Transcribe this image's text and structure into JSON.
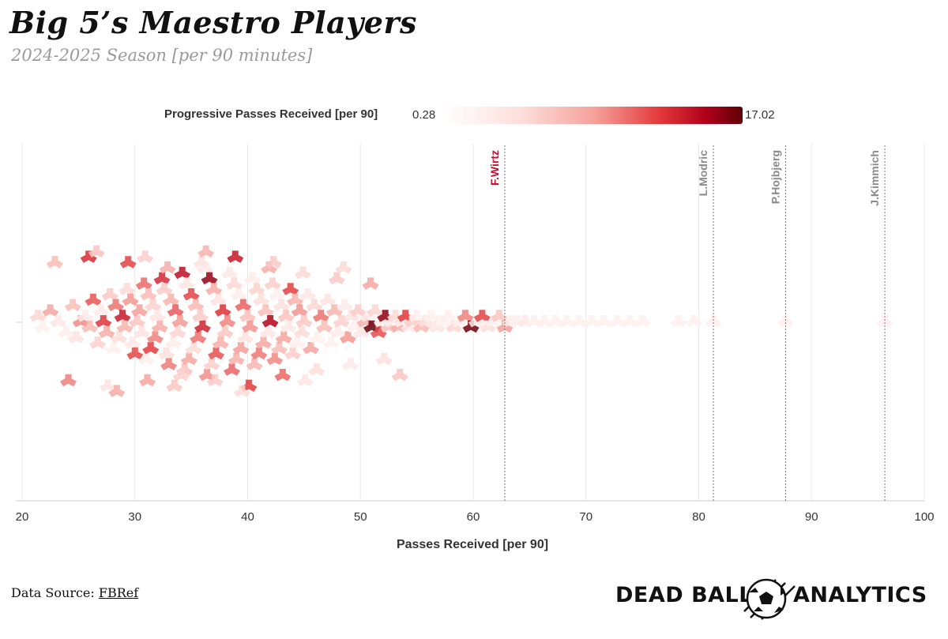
{
  "header": {
    "title": "Big 5’s Maestro Players",
    "subtitle": "2024-2025 Season [per 90 minutes]"
  },
  "legend": {
    "label": "Progressive Passes Received [per 90]",
    "min": "0.28",
    "max": "17.02",
    "colors": [
      "#ffffff",
      "#fde0dd",
      "#f6a39c",
      "#e33a3c",
      "#b0001a",
      "#5e0006"
    ]
  },
  "footer": {
    "source_label": "Data Source:",
    "source_link": "FBRef",
    "brand_left": "DEAD BALL",
    "brand_right": "ANALYTICS"
  },
  "chart_data": {
    "type": "beeswarm",
    "xlabel": "Passes Received [per 90]",
    "xlim": [
      20,
      100
    ],
    "xticks": [
      20,
      30,
      40,
      50,
      60,
      70,
      80,
      90,
      100
    ],
    "grid": true,
    "marker": "y-shape",
    "color_scale": {
      "min": 0.28,
      "max": 17.02
    },
    "highlighted": [
      {
        "name": "F.Wirtz",
        "x": 62.8,
        "color": "#c8102e"
      },
      {
        "name": "L.Modric",
        "x": 81.3,
        "color": "#8a8a8a"
      },
      {
        "name": "P.Hojbjerg",
        "x": 87.7,
        "color": "#8a8a8a"
      },
      {
        "name": "J.Kimmich",
        "x": 96.5,
        "color": "#8a8a8a"
      }
    ],
    "points": [
      [
        21.4,
        5.2
      ],
      [
        21.8,
        2.1
      ],
      [
        22.5,
        8.4
      ],
      [
        23.2,
        3.6
      ],
      [
        23.9,
        1.2
      ],
      [
        24.5,
        6.8
      ],
      [
        24.8,
        4.0
      ],
      [
        25.2,
        9.5
      ],
      [
        25.6,
        2.8
      ],
      [
        26.0,
        7.2
      ],
      [
        26.3,
        11.4
      ],
      [
        26.7,
        5.5
      ],
      [
        27.0,
        3.1
      ],
      [
        27.2,
        12.6
      ],
      [
        27.5,
        8.0
      ],
      [
        27.8,
        6.2
      ],
      [
        28.1,
        2.4
      ],
      [
        28.3,
        10.3
      ],
      [
        28.6,
        4.7
      ],
      [
        28.9,
        13.8
      ],
      [
        29.1,
        7.5
      ],
      [
        29.3,
        5.0
      ],
      [
        29.6,
        9.1
      ],
      [
        29.8,
        3.4
      ],
      [
        30.0,
        11.9
      ],
      [
        30.2,
        6.4
      ],
      [
        30.4,
        8.8
      ],
      [
        30.6,
        4.2
      ],
      [
        30.8,
        10.7
      ],
      [
        31.0,
        2.6
      ],
      [
        31.2,
        7.0
      ],
      [
        31.4,
        12.3
      ],
      [
        31.6,
        5.6
      ],
      [
        31.8,
        9.8
      ],
      [
        32.0,
        3.9
      ],
      [
        32.2,
        8.2
      ],
      [
        32.4,
        13.1
      ],
      [
        32.6,
        6.0
      ],
      [
        32.8,
        4.5
      ],
      [
        33.0,
        10.1
      ],
      [
        33.2,
        7.7
      ],
      [
        33.4,
        2.9
      ],
      [
        33.6,
        11.2
      ],
      [
        33.8,
        5.3
      ],
      [
        34.0,
        9.0
      ],
      [
        34.2,
        14.4
      ],
      [
        34.4,
        6.6
      ],
      [
        34.6,
        3.7
      ],
      [
        34.8,
        8.6
      ],
      [
        35.0,
        12.0
      ],
      [
        35.2,
        4.9
      ],
      [
        35.4,
        7.3
      ],
      [
        35.6,
        10.5
      ],
      [
        35.8,
        6.1
      ],
      [
        36.0,
        13.5
      ],
      [
        36.2,
        3.2
      ],
      [
        36.4,
        9.4
      ],
      [
        36.6,
        15.6
      ],
      [
        36.8,
        5.8
      ],
      [
        37.0,
        8.1
      ],
      [
        37.2,
        11.6
      ],
      [
        37.4,
        4.4
      ],
      [
        37.6,
        7.8
      ],
      [
        37.8,
        12.8
      ],
      [
        38.0,
        6.3
      ],
      [
        38.2,
        9.7
      ],
      [
        38.4,
        3.5
      ],
      [
        38.6,
        10.9
      ],
      [
        38.8,
        5.1
      ],
      [
        39.0,
        7.9
      ],
      [
        39.2,
        2.7
      ],
      [
        39.4,
        8.9
      ],
      [
        39.6,
        11.0
      ],
      [
        39.8,
        4.1
      ],
      [
        40.0,
        6.7
      ],
      [
        40.2,
        9.3
      ],
      [
        40.4,
        3.0
      ],
      [
        40.6,
        7.4
      ],
      [
        40.8,
        5.4
      ],
      [
        41.0,
        10.2
      ],
      [
        41.2,
        4.6
      ],
      [
        41.4,
        8.3
      ],
      [
        41.6,
        6.9
      ],
      [
        41.8,
        3.8
      ],
      [
        42.0,
        14.9
      ],
      [
        42.2,
        5.7
      ],
      [
        42.4,
        9.6
      ],
      [
        42.6,
        2.3
      ],
      [
        42.8,
        7.1
      ],
      [
        43.0,
        4.3
      ],
      [
        43.2,
        8.7
      ],
      [
        43.4,
        6.5
      ],
      [
        43.6,
        3.3
      ],
      [
        43.8,
        12.2
      ],
      [
        44.0,
        5.9
      ],
      [
        44.2,
        7.6
      ],
      [
        44.4,
        2.5
      ],
      [
        44.6,
        9.2
      ],
      [
        44.8,
        4.8
      ],
      [
        45.0,
        6.2
      ],
      [
        45.3,
        3.6
      ],
      [
        45.6,
        8.5
      ],
      [
        45.9,
        5.2
      ],
      [
        46.2,
        2.2
      ],
      [
        46.5,
        10.4
      ],
      [
        46.8,
        6.8
      ],
      [
        47.1,
        4.0
      ],
      [
        47.4,
        1.9
      ],
      [
        47.7,
        7.4
      ],
      [
        48.0,
        3.1
      ],
      [
        48.3,
        5.6
      ],
      [
        48.6,
        2.8
      ],
      [
        48.9,
        9.1
      ],
      [
        49.2,
        4.4
      ],
      [
        49.5,
        1.6
      ],
      [
        49.8,
        6.0
      ],
      [
        50.1,
        3.7
      ],
      [
        50.4,
        7.9
      ],
      [
        50.7,
        2.4
      ],
      [
        51.0,
        16.8
      ],
      [
        51.3,
        5.3
      ],
      [
        51.6,
        11.7
      ],
      [
        51.9,
        3.0
      ],
      [
        52.2,
        15.9
      ],
      [
        52.5,
        6.6
      ],
      [
        52.8,
        2.1
      ],
      [
        53.1,
        4.9
      ],
      [
        53.4,
        8.0
      ],
      [
        53.7,
        1.4
      ],
      [
        54.0,
        12.5
      ],
      [
        54.3,
        3.4
      ],
      [
        54.6,
        5.8
      ],
      [
        55.0,
        2.0
      ],
      [
        55.4,
        7.2
      ],
      [
        55.8,
        4.2
      ],
      [
        56.3,
        1.8
      ],
      [
        56.8,
        3.9
      ],
      [
        57.3,
        0.9
      ],
      [
        57.8,
        2.6
      ],
      [
        58.3,
        5.1
      ],
      [
        58.8,
        1.5
      ],
      [
        59.3,
        9.8
      ],
      [
        59.8,
        16.5
      ],
      [
        60.3,
        3.2
      ],
      [
        60.8,
        12.1
      ],
      [
        61.3,
        4.6
      ],
      [
        61.8,
        1.2
      ],
      [
        62.3,
        6.3
      ],
      [
        62.8,
        8.8
      ],
      [
        63.3,
        2.9
      ],
      [
        63.9,
        0.8
      ],
      [
        64.6,
        3.5
      ],
      [
        65.4,
        1.7
      ],
      [
        66.3,
        2.3
      ],
      [
        67.3,
        1.0
      ],
      [
        68.3,
        1.9
      ],
      [
        69.4,
        0.6
      ],
      [
        70.5,
        1.4
      ],
      [
        71.6,
        0.7
      ],
      [
        72.8,
        1.1
      ],
      [
        73.9,
        0.5
      ],
      [
        75.0,
        1.3
      ],
      [
        78.2,
        0.5
      ],
      [
        79.6,
        0.4
      ],
      [
        81.3,
        0.6
      ],
      [
        87.7,
        0.5
      ],
      [
        96.5,
        0.3
      ],
      [
        22.9,
        7.1
      ],
      [
        24.1,
        9.9
      ],
      [
        25.9,
        13.0
      ],
      [
        27.6,
        4.1
      ],
      [
        29.4,
        12.1
      ],
      [
        31.1,
        8.6
      ],
      [
        32.9,
        7.9
      ],
      [
        34.1,
        5.5
      ],
      [
        35.9,
        3.9
      ],
      [
        37.1,
        6.0
      ],
      [
        38.9,
        13.9
      ],
      [
        40.1,
        12.4
      ],
      [
        41.9,
        8.0
      ],
      [
        43.1,
        10.8
      ],
      [
        44.9,
        5.0
      ],
      [
        46.1,
        4.7
      ],
      [
        47.9,
        6.1
      ],
      [
        49.1,
        3.3
      ],
      [
        50.9,
        8.4
      ],
      [
        52.1,
        4.5
      ],
      [
        26.6,
        6.5
      ],
      [
        28.4,
        8.1
      ],
      [
        30.9,
        5.7
      ],
      [
        33.5,
        6.3
      ],
      [
        36.3,
        7.6
      ],
      [
        39.5,
        4.9
      ],
      [
        42.3,
        6.1
      ],
      [
        45.1,
        3.9
      ],
      [
        48.5,
        5.0
      ],
      [
        53.5,
        6.4
      ]
    ],
    "offsets": [
      -35,
      35,
      -70,
      0,
      70,
      -105,
      105,
      0,
      -35,
      35,
      -140,
      140,
      -70,
      0,
      70,
      -175,
      175,
      -105,
      105,
      -35,
      35,
      -210,
      -140,
      140,
      210,
      0,
      -70,
      70,
      -245,
      245,
      -175,
      175,
      -105,
      105,
      -35,
      35,
      -280,
      -210,
      210,
      280,
      -140,
      140,
      -70,
      70,
      0,
      -315,
      315,
      -245,
      245,
      -175,
      175,
      -105,
      105,
      -35,
      35,
      -350,
      350,
      -280,
      280,
      -210,
      210,
      -140,
      140,
      -70,
      70,
      0,
      -315,
      315,
      -245,
      245,
      -175,
      175,
      -105,
      105,
      -35,
      35,
      -280,
      280,
      -210,
      210,
      -140,
      140,
      -70,
      70,
      0,
      -245,
      245,
      -175,
      175,
      -105,
      105,
      -35,
      35,
      -210,
      210,
      -140,
      140,
      -70,
      70,
      0,
      -175,
      175,
      -105,
      105,
      -35,
      35,
      -140,
      140,
      -70,
      70,
      0,
      -105,
      105,
      -35,
      35,
      -70,
      70,
      0,
      -35,
      35,
      -70,
      70,
      0,
      -35,
      35,
      0,
      -35,
      35,
      0,
      -35,
      35,
      0,
      -35,
      35,
      0,
      -35,
      35,
      0,
      -35,
      35,
      0,
      -35,
      35,
      0,
      -35,
      35,
      0,
      -35,
      35,
      0,
      0,
      0,
      0,
      0,
      0,
      0,
      0,
      0,
      0,
      0,
      0,
      0,
      0,
      0,
      0,
      0,
      0,
      -385,
      385,
      -420,
      420,
      -385,
      385,
      -350,
      350,
      -385,
      385,
      -420,
      420,
      -350,
      350,
      -315,
      315,
      -280,
      280,
      -245,
      245,
      -455,
      455,
      -420,
      420,
      -455,
      455,
      -385,
      385,
      -350,
      350
    ]
  }
}
